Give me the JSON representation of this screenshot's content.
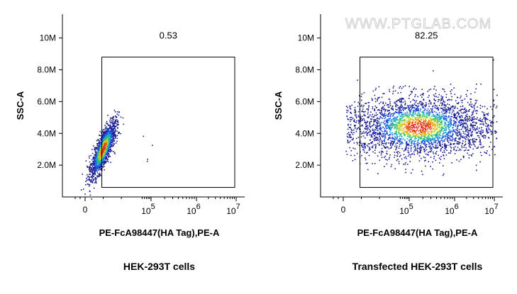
{
  "watermark": "WWW.PTGLAB.COM",
  "chart_data": [
    {
      "type": "scatter",
      "title": "",
      "caption": "HEK-293T cells",
      "xlabel": "PE-FcA98447(HA Tag),PE-A",
      "ylabel": "SSC-A",
      "x_scale": "biexponential",
      "x_ticks": [
        {
          "label": "0",
          "value": 0
        },
        {
          "base": "10",
          "exp": "5",
          "value": 100000
        },
        {
          "base": "10",
          "exp": "6",
          "value": 1000000
        },
        {
          "base": "10",
          "exp": "7",
          "value": 10000000
        }
      ],
      "y_ticks": [
        "2.0M",
        "4.0M",
        "6.0M",
        "8.0M",
        "10M"
      ],
      "y_tick_values": [
        2000000,
        4000000,
        6000000,
        8000000,
        10000000
      ],
      "ylim": [
        0,
        11500000
      ],
      "gate": {
        "label": "0.53",
        "percent": 0.53,
        "x_min": 5000,
        "x_max": 10000000,
        "y_min": 600000,
        "y_max": 8800000
      },
      "population": {
        "x_center": 1500,
        "y_center": 3000000,
        "description": "dense cluster near zero fluorescence"
      }
    },
    {
      "type": "scatter",
      "title": "",
      "caption": "Transfected HEK-293T cells",
      "xlabel": "PE-FcA98447(HA Tag),PE-A",
      "ylabel": "SSC-A",
      "x_scale": "biexponential",
      "x_ticks": [
        {
          "label": "0",
          "value": 0
        },
        {
          "base": "10",
          "exp": "5",
          "value": 100000
        },
        {
          "base": "10",
          "exp": "6",
          "value": 1000000
        },
        {
          "base": "10",
          "exp": "7",
          "value": 10000000
        }
      ],
      "y_ticks": [
        "2.0M",
        "4.0M",
        "6.0M",
        "8.0M",
        "10M"
      ],
      "y_tick_values": [
        2000000,
        4000000,
        6000000,
        8000000,
        10000000
      ],
      "ylim": [
        0,
        11500000
      ],
      "gate": {
        "label": "82.25",
        "percent": 82.25,
        "x_min": 5000,
        "x_max": 10000000,
        "y_min": 600000,
        "y_max": 8800000
      },
      "population": {
        "x_center": 100000,
        "y_center": 4500000,
        "description": "broad cloud spanning positive fluorescence"
      }
    }
  ],
  "colors": {
    "axis": "#000000",
    "density": [
      "#1a1a8c",
      "#1f4fd6",
      "#1fa3d6",
      "#2fc46a",
      "#c9d62a",
      "#f0a020",
      "#e03a1a"
    ]
  }
}
